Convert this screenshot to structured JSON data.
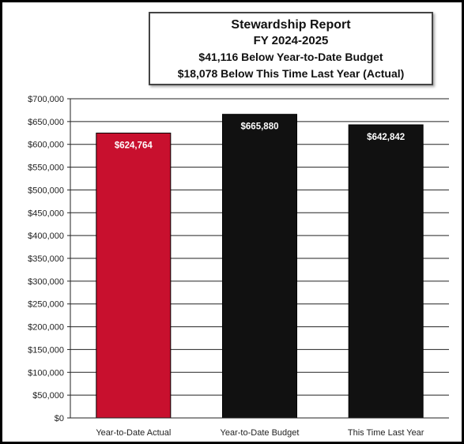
{
  "chart_data": {
    "type": "bar",
    "title": "Stewardship Report",
    "subtitle_lines": [
      "FY 2024-2025",
      "$41,116 Below Year-to-Date Budget",
      "$18,078 Below This Time Last Year (Actual)"
    ],
    "categories": [
      "Year-to-Date Actual",
      "Year-to-Date Budget",
      "This Time Last Year"
    ],
    "values": [
      624764,
      665880,
      642842
    ],
    "data_labels": [
      "$624,764",
      "$665,880",
      "$642,842"
    ],
    "bar_colors": [
      "#c8102e",
      "#111111",
      "#111111"
    ],
    "ylim": [
      0,
      700000
    ],
    "y_tick_step": 50000,
    "y_tick_labels": [
      "$0",
      "$50,000",
      "$100,000",
      "$150,000",
      "$200,000",
      "$250,000",
      "$300,000",
      "$350,000",
      "$400,000",
      "$450,000",
      "$500,000",
      "$550,000",
      "$600,000",
      "$650,000",
      "$700,000"
    ],
    "grid": true,
    "legend": "none"
  }
}
